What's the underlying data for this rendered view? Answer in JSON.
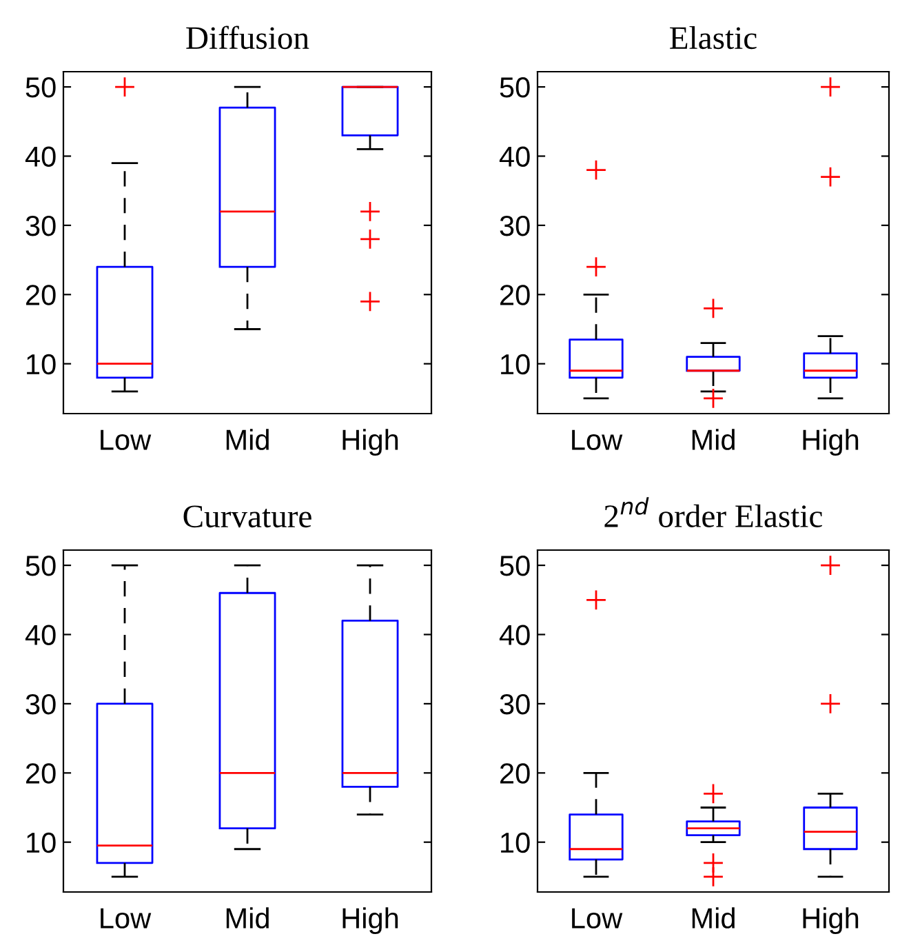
{
  "chart_data": [
    {
      "type": "box",
      "title": "Diffusion",
      "categories": [
        "Low",
        "Mid",
        "High"
      ],
      "ylim": [
        2.8,
        52.2
      ],
      "yticks": [
        10,
        20,
        30,
        40,
        50
      ],
      "marker": "cross",
      "series": [
        {
          "color": "#0000ff",
          "boxes": [
            {
              "low": 6,
              "q1": 8,
              "median": 10,
              "q3": 24,
              "high": 39,
              "outliers": [
                50
              ]
            },
            {
              "low": 15,
              "q1": 24,
              "median": 32,
              "q3": 47,
              "high": 50
            },
            {
              "low": 41,
              "q1": 43,
              "median": 50,
              "q3": 50,
              "high": 50,
              "outliers": [
                32,
                28,
                19
              ]
            }
          ]
        }
      ]
    },
    {
      "type": "box",
      "title": "Elastic",
      "categories": [
        "Low",
        "Mid",
        "High"
      ],
      "ylim": [
        2.8,
        52.2
      ],
      "yticks": [
        10,
        20,
        30,
        40,
        50
      ],
      "marker": "cross",
      "series": [
        {
          "color": "#0000ff",
          "boxes": [
            {
              "low": 5,
              "q1": 8,
              "median": 9,
              "q3": 13.5,
              "high": 20,
              "outliers": [
                38,
                24
              ]
            },
            {
              "low": 6,
              "q1": 9,
              "median": 9,
              "q3": 11,
              "high": 13,
              "outliers": [
                18,
                5
              ]
            },
            {
              "low": 5,
              "q1": 8,
              "median": 9,
              "q3": 11.5,
              "high": 14,
              "outliers": [
                50,
                37
              ]
            }
          ]
        }
      ]
    },
    {
      "type": "box",
      "title": "Curvature",
      "categories": [
        "Low",
        "Mid",
        "High"
      ],
      "ylim": [
        2.8,
        52.2
      ],
      "yticks": [
        10,
        20,
        30,
        40,
        50
      ],
      "marker": "cross",
      "series": [
        {
          "color": "#0000ff",
          "boxes": [
            {
              "low": 5,
              "q1": 7,
              "median": 9.5,
              "q3": 30,
              "high": 50
            },
            {
              "low": 9,
              "q1": 12,
              "median": 20,
              "q3": 46,
              "high": 50
            },
            {
              "low": 14,
              "q1": 18,
              "median": 20,
              "q3": 42,
              "high": 50
            }
          ]
        }
      ]
    },
    {
      "type": "box",
      "title": "2$^{nd}$ order Elastic",
      "categories": [
        "Low",
        "Mid",
        "High"
      ],
      "ylim": [
        2.8,
        52.2
      ],
      "yticks": [
        10,
        20,
        30,
        40,
        50
      ],
      "marker": "cross",
      "series": [
        {
          "color": "#0000ff",
          "boxes": [
            {
              "low": 5,
              "q1": 7.5,
              "median": 9,
              "q3": 14,
              "high": 20,
              "outliers": [
                45
              ]
            },
            {
              "low": 10,
              "q1": 11,
              "median": 12,
              "q3": 13,
              "high": 15,
              "outliers": [
                17,
                7,
                5
              ]
            },
            {
              "low": 5,
              "q1": 9,
              "median": 11.5,
              "q3": 15,
              "high": 17,
              "outliers": [
                50,
                30
              ]
            }
          ]
        }
      ]
    }
  ]
}
